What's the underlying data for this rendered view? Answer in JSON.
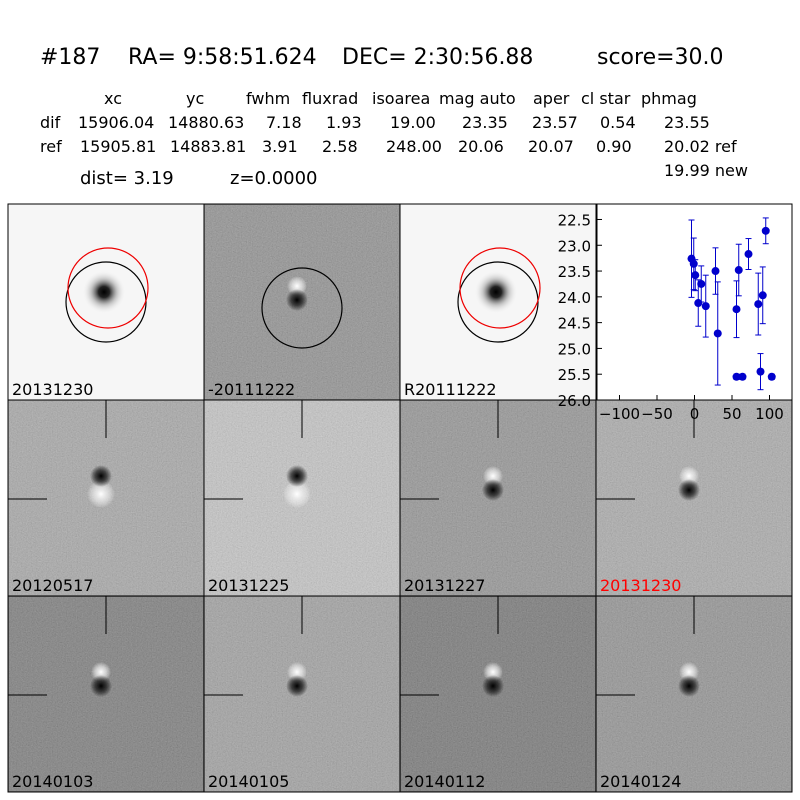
{
  "header": {
    "id": "#187",
    "ra": "RA= 9:58:51.624",
    "dec": "DEC= 2:30:56.88",
    "score": "score=30.0"
  },
  "table": {
    "columns": [
      "xc",
      "yc",
      "fwhm",
      "fluxrad",
      "isoarea",
      "mag auto",
      "aper",
      "cl star",
      "phmag"
    ],
    "rows": [
      [
        "dif",
        "15906.04",
        "14880.63",
        "7.18",
        "1.93",
        "19.00",
        "23.35",
        "23.57",
        "0.54",
        "23.55"
      ],
      [
        "ref",
        "15905.81",
        "14883.81",
        "3.91",
        "2.58",
        "248.00",
        "20.06",
        "20.07",
        "0.90",
        "20.02 ref"
      ]
    ],
    "extra": "19.99 new"
  },
  "dist": "dist=  3.19",
  "z": "z=0.0000",
  "stamps": [
    {
      "label": "20131230"
    },
    {
      "label": "-20111222"
    },
    {
      "label": "R20111222"
    },
    {
      "label": "20120517"
    },
    {
      "label": "20131225"
    },
    {
      "label": "20131227"
    },
    {
      "label": "20131230",
      "color": "#ff0000"
    },
    {
      "label": "20140103"
    },
    {
      "label": "20140105"
    },
    {
      "label": "20140112"
    },
    {
      "label": "20140124"
    }
  ],
  "chart_data": {
    "type": "errorbar",
    "color": "#0000cc",
    "x": [
      -4,
      -1,
      1,
      5,
      9,
      15,
      28,
      31,
      56,
      59,
      56,
      64,
      72,
      85,
      88,
      91,
      95,
      103
    ],
    "values": [
      23.26,
      23.36,
      23.58,
      24.12,
      23.75,
      24.18,
      23.5,
      24.71,
      24.24,
      23.48,
      25.55,
      25.55,
      23.17,
      24.14,
      25.45,
      23.97,
      22.72,
      25.55
    ],
    "errors": [
      0.75,
      0.5,
      0.3,
      0.45,
      0.35,
      0.6,
      0.45,
      1.0,
      0.55,
      0.5,
      0.05,
      0.05,
      0.3,
      0.6,
      0.35,
      0.55,
      0.25,
      0.05
    ],
    "xlim": [
      -130,
      130
    ],
    "ylim": [
      26.0,
      22.2
    ],
    "xticks": [
      {
        "value": -100,
        "label": "−100"
      },
      {
        "value": -50,
        "label": "−50"
      },
      0,
      50,
      100
    ],
    "yticks": [
      {
        "value": 22.5,
        "label": "22.5"
      },
      {
        "value": 23,
        "label": "23.0"
      },
      {
        "value": 23.5,
        "label": "23.5"
      },
      {
        "value": 24,
        "label": "24.0"
      },
      {
        "value": 24.5,
        "label": "24.5"
      },
      {
        "value": 25,
        "label": "25.0"
      },
      {
        "value": 25.5,
        "label": "25.5"
      },
      {
        "value": 26,
        "label": "26.0"
      }
    ]
  }
}
